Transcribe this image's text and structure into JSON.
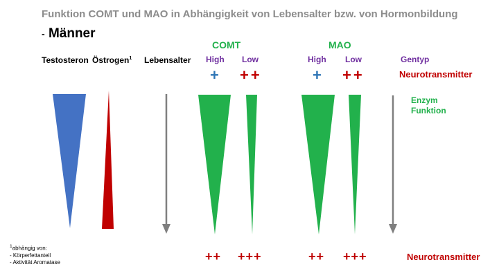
{
  "title": "Funktion COMT und MAO in Abhängigkeit von Lebensalter bzw. von Hormonbildung",
  "subtitle_dash": "-",
  "subtitle": "Männer",
  "headers": {
    "testosteron": "Testosteron",
    "oestrogen": "Östrogen",
    "oestrogen_sup": "1",
    "lebensalter": "Lebensalter"
  },
  "groups": {
    "comt": "COMT",
    "mao": "MAO"
  },
  "gentypes": {
    "comt_high": "High",
    "comt_low": "Low",
    "mao_high": "High",
    "mao_low": "Low",
    "label": "Gentyp"
  },
  "top_markers": {
    "comt_high": "+",
    "comt_low": "++",
    "mao_high": "+",
    "mao_low": "++",
    "label": "Neurotransmitter"
  },
  "enzym_label": "Enzym Funktion",
  "bottom_markers": {
    "comt_high": "++",
    "comt_low": "+++",
    "mao_high": "++",
    "mao_low": "+++",
    "label": "Neurotransmitter"
  },
  "footnote": {
    "line1_sup": "1",
    "line1": "abhängig von:",
    "line2": "- Körperfettanteil",
    "line3": "- Aktivität Aromatase"
  },
  "colors": {
    "testosteron": "#4472c4",
    "oestrogen": "#c00000",
    "enzyme": "#22b14c",
    "arrow": "#7f7f7f",
    "gentyp": "#7030a0",
    "neurotransmitter": "#c00000",
    "plus_blue": "#2e75b6"
  }
}
